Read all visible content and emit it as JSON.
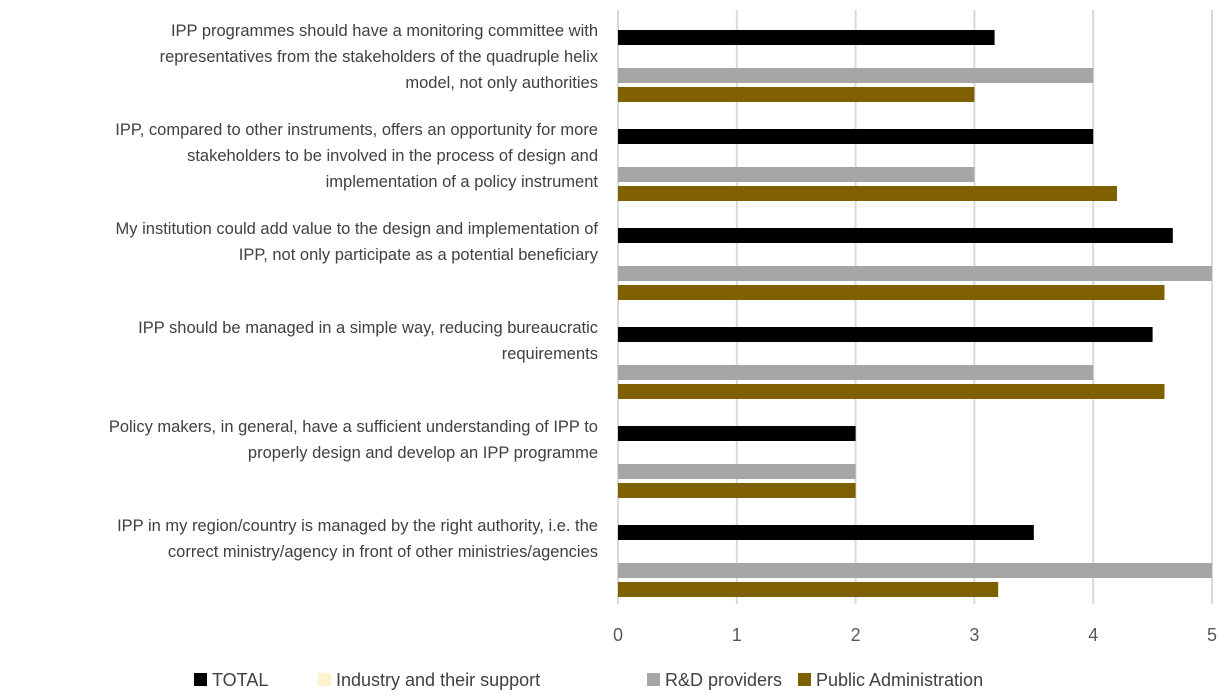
{
  "chart_data": {
    "type": "bar",
    "orientation": "horizontal",
    "categories": [
      [
        "IPP programmes should have a monitoring committee with",
        "representatives from the stakeholders of the quadruple helix",
        "model, not only authorities"
      ],
      [
        "IPP, compared to other instruments, offers an opportunity for more",
        "stakeholders to be involved in the process of design and",
        "implementation of a policy instrument"
      ],
      [
        "My institution could add value to the design and implementation of",
        "IPP, not only participate as a potential beneficiary"
      ],
      [
        "IPP should be managed in a simple way, reducing bureaucratic",
        "requirements"
      ],
      [
        "Policy makers, in general, have a sufficient understanding of IPP to",
        "properly design and develop an IPP programme"
      ],
      [
        "IPP in my region/country is managed by the right authority, i.e. the",
        "correct ministry/agency in front of other ministries/agencies"
      ]
    ],
    "series": [
      {
        "name": "TOTAL",
        "color": "#000000",
        "values": [
          3.17,
          4.0,
          4.67,
          4.5,
          2.0,
          3.5
        ]
      },
      {
        "name": "Industry and their support",
        "color": "#fff2cc",
        "values": [
          0,
          0,
          0,
          0,
          0,
          0
        ]
      },
      {
        "name": "R&D providers",
        "color": "#a6a6a6",
        "values": [
          4.0,
          3.0,
          5.0,
          4.0,
          2.0,
          5.0
        ]
      },
      {
        "name": "Public Administration",
        "color": "#7f6000",
        "values": [
          3.0,
          4.2,
          4.6,
          4.6,
          2.0,
          3.2
        ]
      }
    ],
    "xlim": [
      0,
      5
    ],
    "xticks": [
      "0",
      "1",
      "2",
      "3",
      "4",
      "5"
    ],
    "grid": "vertical",
    "legend": "bottom",
    "title": "",
    "xlabel": "",
    "ylabel": ""
  }
}
